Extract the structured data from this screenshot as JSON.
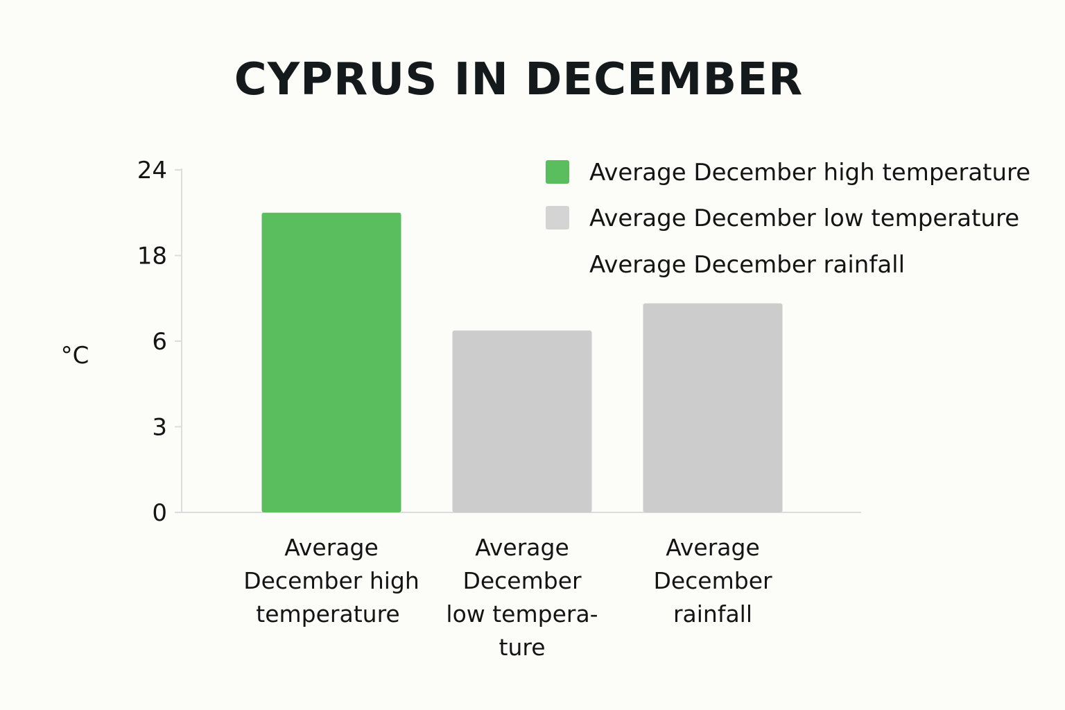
{
  "chart_data": {
    "type": "bar",
    "title": "CYPRUS IN DECEMBER",
    "ylabel": "°C",
    "xlabel": "",
    "y_ticks": [
      {
        "value": 0,
        "label": "0"
      },
      {
        "value": 3,
        "label": "3"
      },
      {
        "value": 6,
        "label": "6"
      },
      {
        "value": 18,
        "label": "18"
      },
      {
        "value": 24,
        "label": "24"
      }
    ],
    "categories": [
      [
        "Average",
        "December high",
        "temperature"
      ],
      [
        "Average",
        "December",
        "low tempera-",
        "ture"
      ],
      [
        "Average",
        "December",
        "rainfall"
      ]
    ],
    "values": [
      21,
      7.5,
      11.3
    ],
    "bar_colors": [
      "#5abd5e",
      "#cccccc",
      "#cccccc"
    ],
    "grid": false,
    "legend_position": "top-right",
    "legend": [
      {
        "label": "Average December high temperature",
        "color": "#5abd5e",
        "swatch": true
      },
      {
        "label": "Average December low temperature",
        "color": "#d4d4d4",
        "swatch": true
      },
      {
        "label": "Average December rainfall",
        "color": "",
        "swatch": false
      }
    ]
  }
}
